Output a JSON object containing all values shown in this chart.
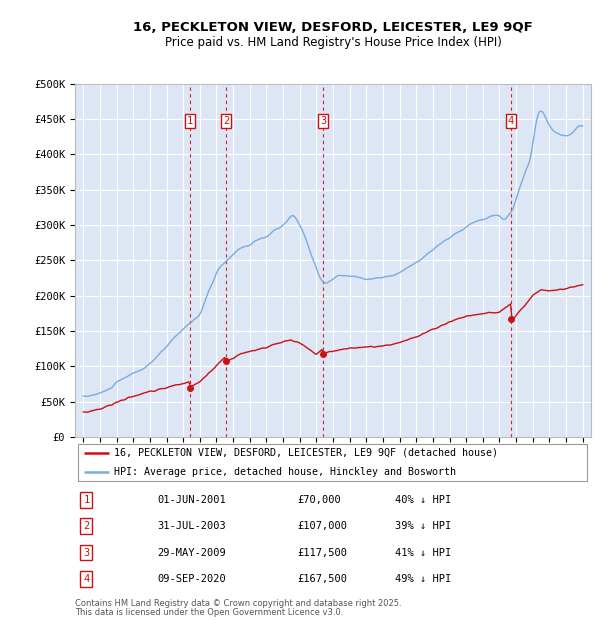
{
  "title_line1": "16, PECKLETON VIEW, DESFORD, LEICESTER, LE9 9QF",
  "title_line2": "Price paid vs. HM Land Registry's House Price Index (HPI)",
  "bg_color": "#dce6f5",
  "grid_color": "#ffffff",
  "hpi_color": "#7aacdc",
  "price_color": "#cc1111",
  "ylim": [
    0,
    500000
  ],
  "yticks": [
    0,
    50000,
    100000,
    150000,
    200000,
    250000,
    300000,
    350000,
    400000,
    450000,
    500000
  ],
  "ytick_labels": [
    "£0",
    "£50K",
    "£100K",
    "£150K",
    "£200K",
    "£250K",
    "£300K",
    "£350K",
    "£400K",
    "£450K",
    "£500K"
  ],
  "legend_label_price": "16, PECKLETON VIEW, DESFORD, LEICESTER, LE9 9QF (detached house)",
  "legend_label_hpi": "HPI: Average price, detached house, Hinckley and Bosworth",
  "footer_line1": "Contains HM Land Registry data © Crown copyright and database right 2025.",
  "footer_line2": "This data is licensed under the Open Government Licence v3.0.",
  "transactions": [
    {
      "num": 1,
      "date": "01-JUN-2001",
      "price": 70000,
      "pct": "40%",
      "dir": "↓",
      "year_x": 2001.42
    },
    {
      "num": 2,
      "date": "31-JUL-2003",
      "price": 107000,
      "pct": "39%",
      "dir": "↓",
      "year_x": 2003.58
    },
    {
      "num": 3,
      "date": "29-MAY-2009",
      "price": 117500,
      "pct": "41%",
      "dir": "↓",
      "year_x": 2009.41
    },
    {
      "num": 4,
      "date": "09-SEP-2020",
      "price": 167500,
      "pct": "49%",
      "dir": "↓",
      "year_x": 2020.69
    }
  ],
  "xlim": [
    1994.5,
    2025.5
  ],
  "xtick_years": [
    1995,
    1996,
    1997,
    1998,
    1999,
    2000,
    2001,
    2002,
    2003,
    2004,
    2005,
    2006,
    2007,
    2008,
    2009,
    2010,
    2011,
    2012,
    2013,
    2014,
    2015,
    2016,
    2017,
    2018,
    2019,
    2020,
    2021,
    2022,
    2023,
    2024,
    2025
  ]
}
